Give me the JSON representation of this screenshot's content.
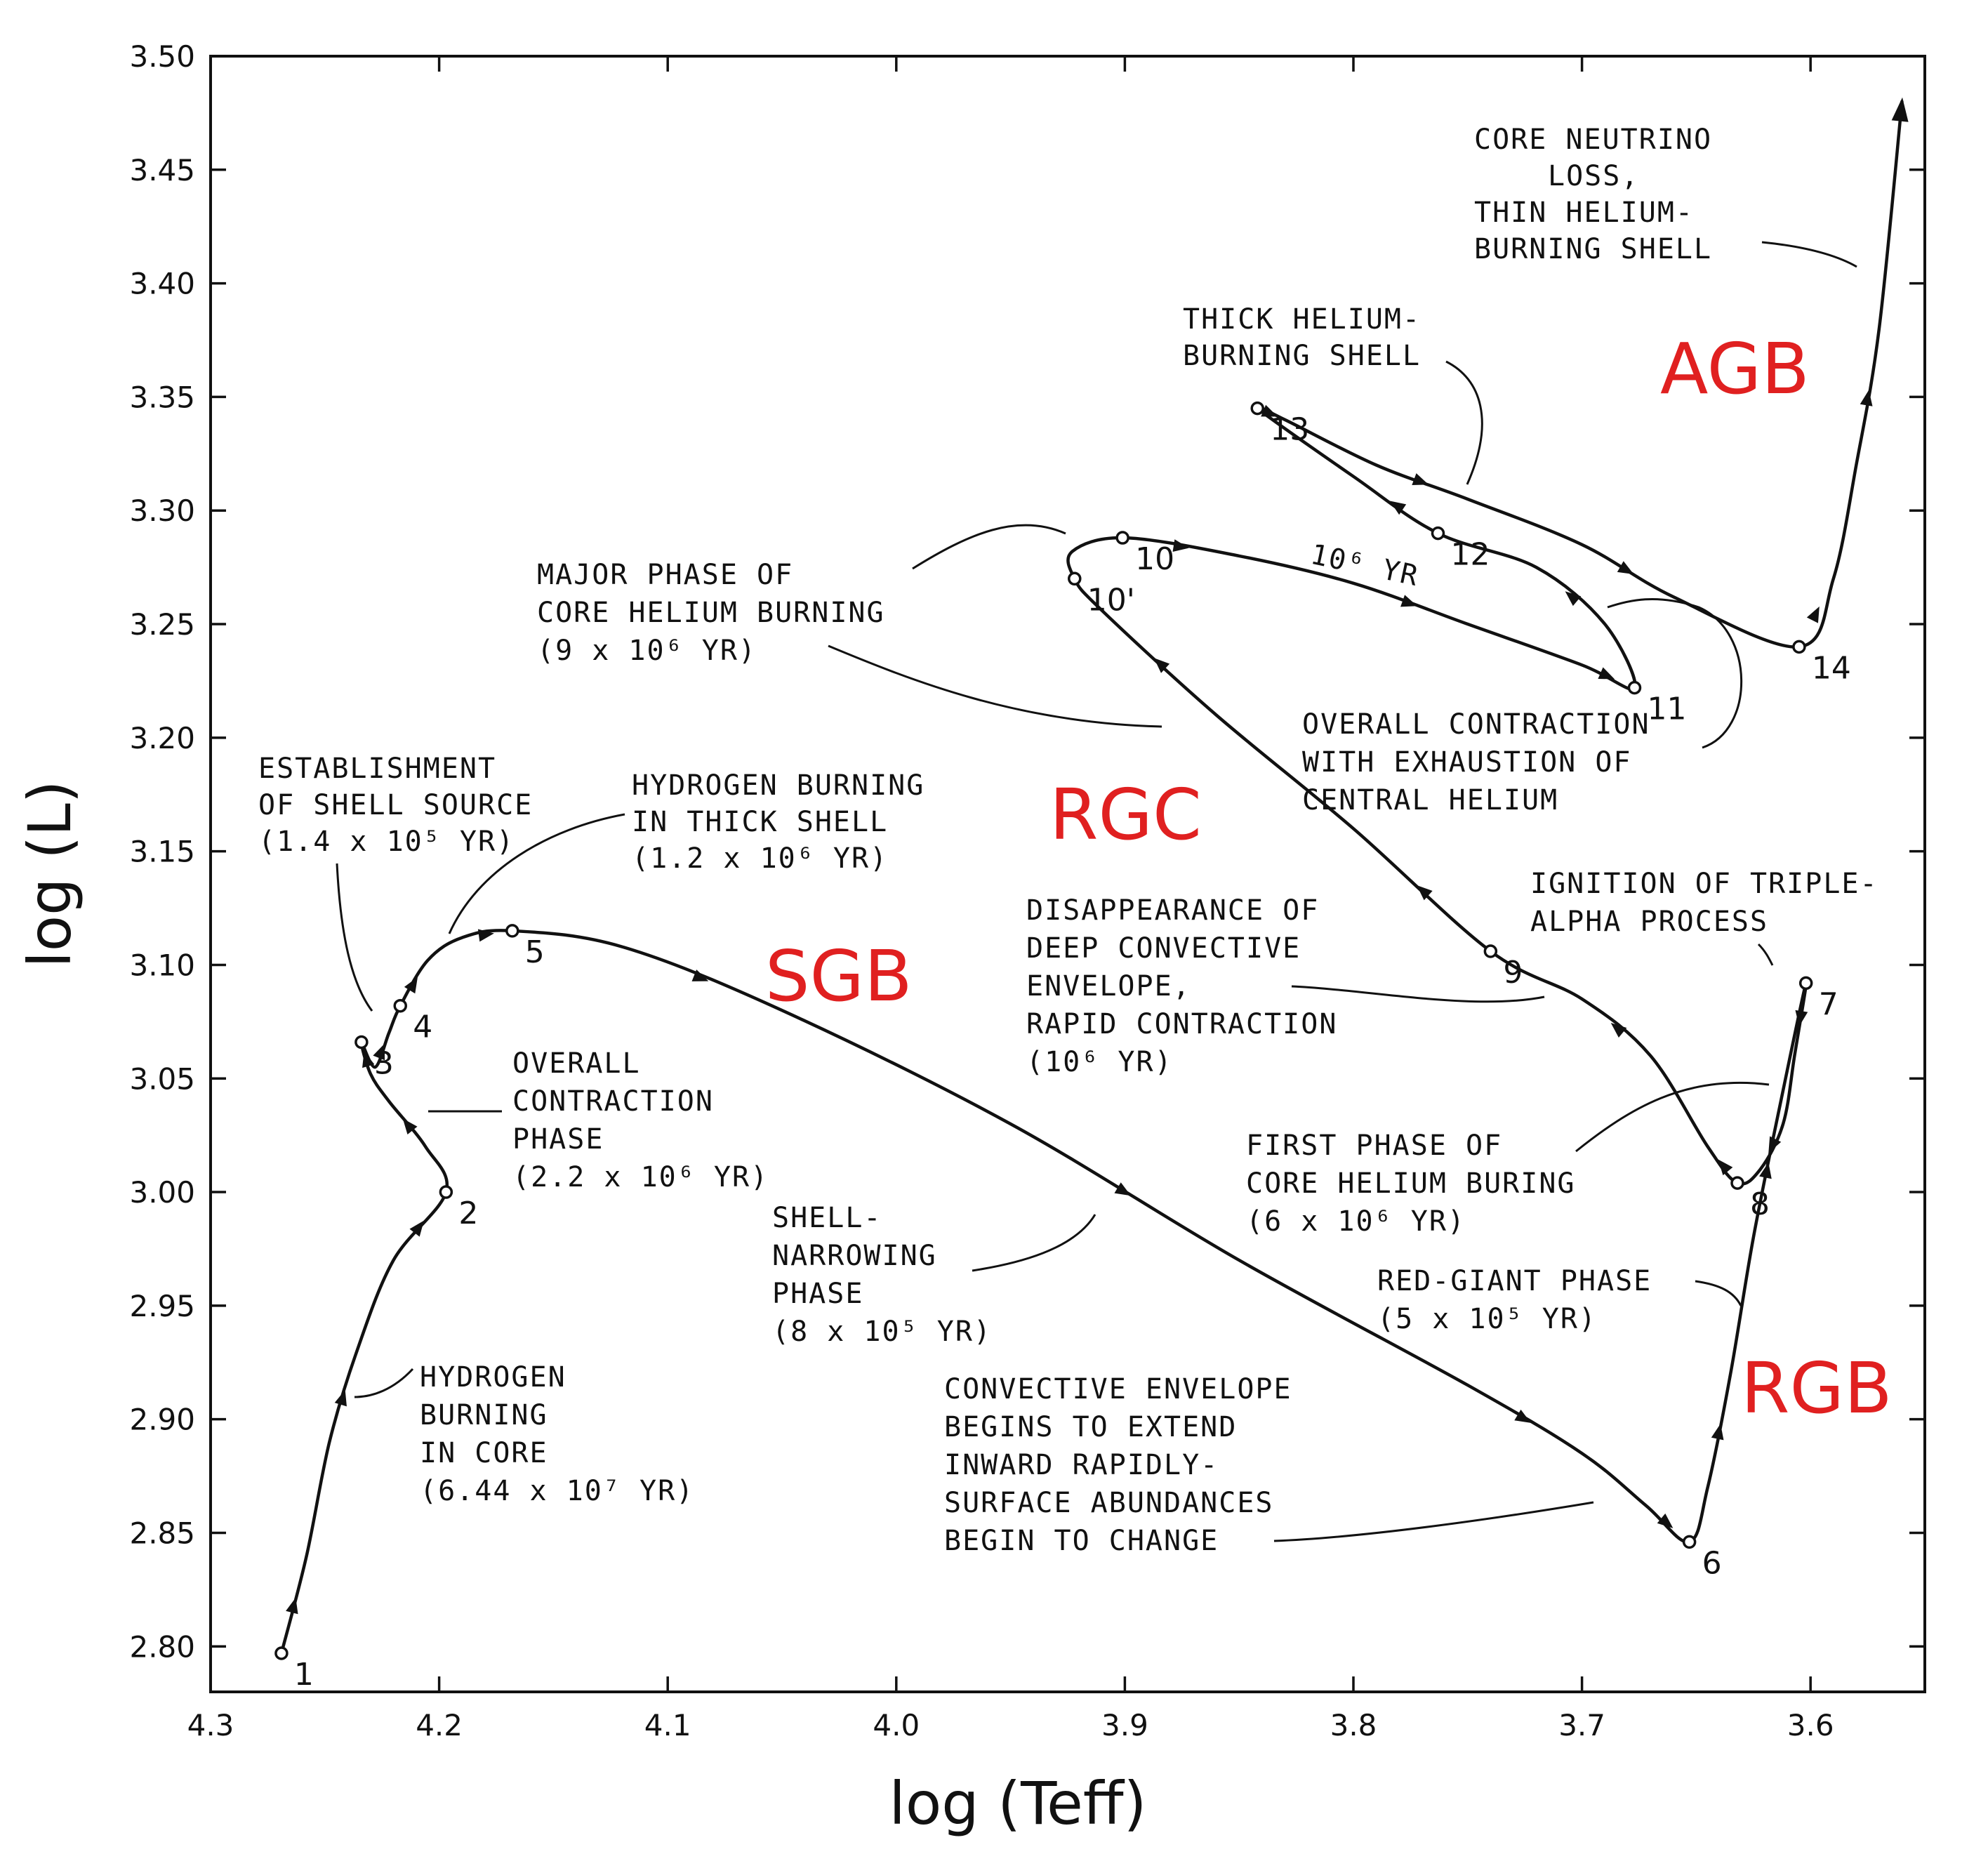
{
  "chart_data": {
    "type": "line",
    "title": "",
    "xlabel": "log (Teff)",
    "ylabel": "log (L)",
    "x_reversed": true,
    "xlim": [
      4.3,
      3.55
    ],
    "ylim": [
      2.78,
      3.5
    ],
    "x_ticks": [
      4.3,
      4.2,
      4.1,
      4.0,
      3.9,
      3.8,
      3.7,
      3.6
    ],
    "x_tick_labels": [
      "4.3",
      "4.2",
      "4.1",
      "4.0",
      "3.9",
      "3.8",
      "3.7",
      "3.6"
    ],
    "y_ticks": [
      2.8,
      2.85,
      2.9,
      2.95,
      3.0,
      3.05,
      3.1,
      3.15,
      3.2,
      3.25,
      3.3,
      3.35,
      3.4,
      3.45,
      3.5
    ],
    "y_tick_labels": [
      "2.80",
      "2.85",
      "2.90",
      "2.95",
      "3.00",
      "3.05",
      "3.10",
      "3.15",
      "3.20",
      "3.25",
      "3.30",
      "3.35",
      "3.40",
      "3.45",
      "3.50"
    ],
    "grid": false,
    "track": [
      [
        4.269,
        2.797
      ],
      [
        4.258,
        2.84
      ],
      [
        4.248,
        2.89
      ],
      [
        4.236,
        2.93
      ],
      [
        4.22,
        2.97
      ],
      [
        4.197,
        3.0
      ],
      [
        4.206,
        3.02
      ],
      [
        4.222,
        3.04
      ],
      [
        4.23,
        3.052
      ],
      [
        4.234,
        3.066
      ],
      [
        4.228,
        3.055
      ],
      [
        4.222,
        3.07
      ],
      [
        4.217,
        3.082
      ],
      [
        4.205,
        3.102
      ],
      [
        4.19,
        3.112
      ],
      [
        4.168,
        3.115
      ],
      [
        4.12,
        3.108
      ],
      [
        4.05,
        3.08
      ],
      [
        3.95,
        3.03
      ],
      [
        3.85,
        2.97
      ],
      [
        3.75,
        2.915
      ],
      [
        3.7,
        2.885
      ],
      [
        3.672,
        2.862
      ],
      [
        3.653,
        2.846
      ],
      [
        3.645,
        2.87
      ],
      [
        3.635,
        2.92
      ],
      [
        3.625,
        2.98
      ],
      [
        3.613,
        3.04
      ],
      [
        3.602,
        3.092
      ],
      [
        3.607,
        3.06
      ],
      [
        3.612,
        3.03
      ],
      [
        3.622,
        3.01
      ],
      [
        3.632,
        3.004
      ],
      [
        3.645,
        3.02
      ],
      [
        3.67,
        3.06
      ],
      [
        3.7,
        3.085
      ],
      [
        3.74,
        3.106
      ],
      [
        3.8,
        3.16
      ],
      [
        3.86,
        3.21
      ],
      [
        3.91,
        3.256
      ],
      [
        3.922,
        3.27
      ],
      [
        3.923,
        3.282
      ],
      [
        3.9,
        3.288
      ],
      [
        3.85,
        3.28
      ],
      [
        3.8,
        3.268
      ],
      [
        3.75,
        3.25
      ],
      [
        3.7,
        3.232
      ],
      [
        3.677,
        3.222
      ],
      [
        3.69,
        3.25
      ],
      [
        3.72,
        3.275
      ],
      [
        3.763,
        3.29
      ],
      [
        3.8,
        3.315
      ],
      [
        3.842,
        3.345
      ],
      [
        3.83,
        3.34
      ],
      [
        3.79,
        3.32
      ],
      [
        3.75,
        3.305
      ],
      [
        3.7,
        3.285
      ],
      [
        3.66,
        3.262
      ],
      [
        3.605,
        3.24
      ],
      [
        3.59,
        3.27
      ],
      [
        3.58,
        3.32
      ],
      [
        3.57,
        3.38
      ],
      [
        3.56,
        3.48
      ]
    ],
    "points": [
      {
        "label": "1",
        "x": 4.269,
        "y": 2.797
      },
      {
        "label": "2",
        "x": 4.197,
        "y": 3.0
      },
      {
        "label": "3",
        "x": 4.234,
        "y": 3.066
      },
      {
        "label": "4",
        "x": 4.217,
        "y": 3.082
      },
      {
        "label": "5",
        "x": 4.168,
        "y": 3.115
      },
      {
        "label": "6",
        "x": 3.653,
        "y": 2.846
      },
      {
        "label": "7",
        "x": 3.602,
        "y": 3.092
      },
      {
        "label": "8",
        "x": 3.632,
        "y": 3.004
      },
      {
        "label": "9",
        "x": 3.74,
        "y": 3.106
      },
      {
        "label": "10'",
        "x": 3.922,
        "y": 3.27
      },
      {
        "label": "10",
        "x": 3.901,
        "y": 3.288
      },
      {
        "label": "11",
        "x": 3.677,
        "y": 3.222
      },
      {
        "label": "12",
        "x": 3.763,
        "y": 3.29
      },
      {
        "label": "13",
        "x": 3.842,
        "y": 3.345
      },
      {
        "label": "14",
        "x": 3.605,
        "y": 3.24
      }
    ],
    "phase_labels": [
      "SGB",
      "RGB",
      "RGC",
      "AGB"
    ],
    "phase_label_color": "#e02020",
    "annotations": [
      [
        "ESTABLISHMENT",
        "OF SHELL SOURCE",
        "(1.4 x 10⁵ YR)"
      ],
      [
        "HYDROGEN BURNING",
        "IN THICK SHELL",
        "(1.2 x 10⁶ YR)"
      ],
      [
        "OVERALL",
        "CONTRACTION",
        "PHASE",
        "(2.2 x 10⁶ YR)"
      ],
      [
        "HYDROGEN",
        "BURNING",
        "IN CORE",
        "(6.44 x 10⁷ YR)"
      ],
      [
        "SHELL-",
        "NARROWING",
        "PHASE",
        "(8 x 10⁵ YR)"
      ],
      [
        "CONVECTIVE ENVELOPE",
        "BEGINS TO EXTEND",
        "INWARD RAPIDLY-",
        "SURFACE ABUNDANCES",
        "BEGIN TO CHANGE"
      ],
      [
        "RED-GIANT PHASE",
        "(5 x 10⁵ YR)"
      ],
      [
        "FIRST PHASE OF",
        "CORE HELIUM BURING",
        "(6 x 10⁶ YR)"
      ],
      [
        "IGNITION OF TRIPLE-",
        "ALPHA PROCESS"
      ],
      [
        "DISAPPEARANCE OF",
        "DEEP CONVECTIVE",
        "ENVELOPE,",
        "RAPID CONTRACTION",
        "(10⁶ YR)"
      ],
      [
        "MAJOR PHASE OF",
        "CORE HELIUM BURNING",
        "(9 x 10⁶ YR)"
      ],
      [
        "OVERALL CONTRACTION",
        "WITH EXHAUSTION OF",
        "CENTRAL HELIUM"
      ],
      [
        "THICK HELIUM-",
        "BURNING SHELL"
      ],
      [
        "CORE NEUTRINO",
        "LOSS,",
        "THIN HELIUM-",
        "BURNING SHELL"
      ],
      [
        "10⁶ YR"
      ]
    ]
  }
}
